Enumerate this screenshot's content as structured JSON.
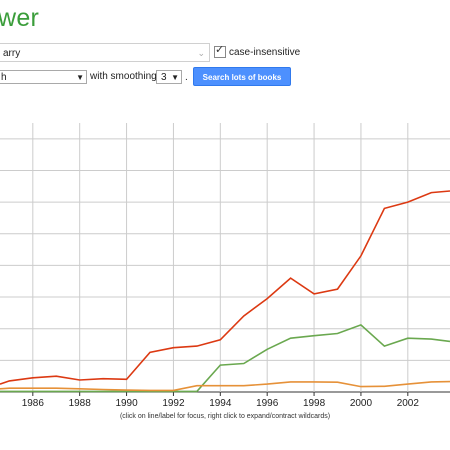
{
  "header": {
    "title": "wer"
  },
  "search": {
    "query_value": "arry",
    "case_insensitive_label": "case-insensitive",
    "corpus_value": "h",
    "smoothing_label": "with smoothing of",
    "smoothing_value": "3",
    "submit_label": "Search lots of books"
  },
  "chart_data": {
    "type": "line",
    "grid": true,
    "x_ticks": [
      "1986",
      "1988",
      "1990",
      "1992",
      "1994",
      "1996",
      "1998",
      "2000",
      "2002"
    ],
    "xlim": [
      1984.6,
      2003.8
    ],
    "ylim": [
      0,
      8.5
    ],
    "series": [
      {
        "color": "#dc3912",
        "x": [
          1984.6,
          1985,
          1986,
          1987,
          1988,
          1989,
          1990,
          1991,
          1992,
          1993,
          1994,
          1995,
          1996,
          1997,
          1998,
          1999,
          2000,
          2001,
          2002,
          2003,
          2003.8
        ],
        "y": [
          0.25,
          0.35,
          0.45,
          0.5,
          0.38,
          0.42,
          0.4,
          1.25,
          1.4,
          1.45,
          1.65,
          2.4,
          2.95,
          3.6,
          3.1,
          3.25,
          4.3,
          5.8,
          6.0,
          6.3,
          6.35
        ]
      },
      {
        "color": "#6aa84f",
        "x": [
          1984.6,
          1985,
          1986,
          1987,
          1988,
          1989,
          1990,
          1991,
          1992,
          1993,
          1994,
          1995,
          1996,
          1997,
          1998,
          1999,
          2000,
          2001,
          2002,
          2003,
          2003.8
        ],
        "y": [
          0.02,
          0.02,
          0.02,
          0.02,
          0.02,
          0.02,
          0.02,
          0.02,
          0.02,
          0.02,
          0.85,
          0.9,
          1.35,
          1.7,
          1.78,
          1.85,
          2.12,
          1.45,
          1.7,
          1.67,
          1.6
        ]
      },
      {
        "color": "#e69138",
        "x": [
          1984.6,
          1985,
          1986,
          1987,
          1988,
          1989,
          1990,
          1991,
          1992,
          1993,
          1994,
          1995,
          1996,
          1997,
          1998,
          1999,
          2000,
          2001,
          2002,
          2003,
          2003.8
        ],
        "y": [
          0.1,
          0.12,
          0.12,
          0.12,
          0.1,
          0.08,
          0.06,
          0.05,
          0.05,
          0.2,
          0.2,
          0.2,
          0.25,
          0.32,
          0.32,
          0.31,
          0.17,
          0.18,
          0.25,
          0.32,
          0.33
        ]
      }
    ]
  },
  "footer": {
    "hint": "(click on line/label for focus, right click to expand/contract wildcards)"
  }
}
